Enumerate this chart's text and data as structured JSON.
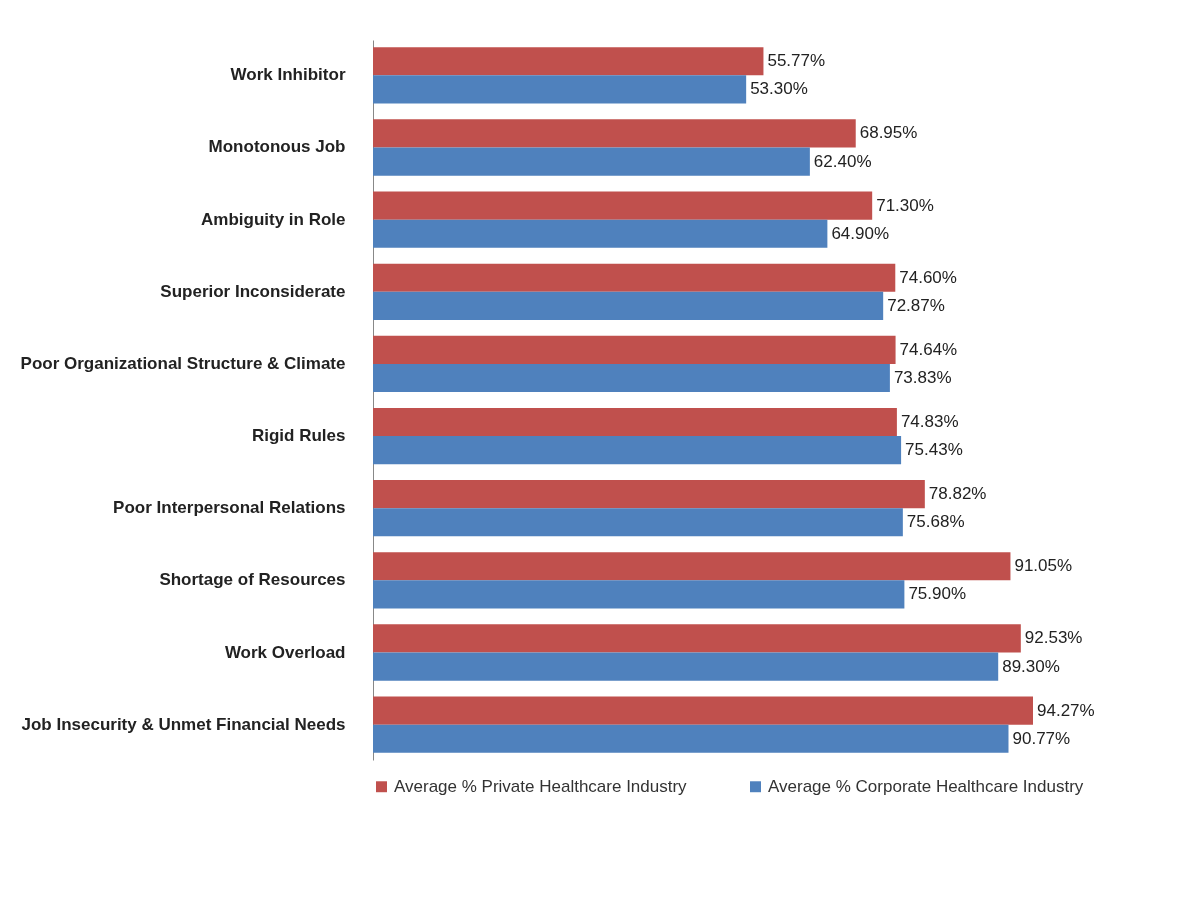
{
  "chart_data": {
    "type": "bar",
    "orientation": "horizontal",
    "categories": [
      "Work Inhibitor",
      "Monotonous Job",
      "Ambiguity in Role",
      "Superior Inconsiderate",
      "Poor Organizational Structure & Climate",
      "Rigid Rules",
      "Poor Interpersonal Relations",
      "Shortage of Resources",
      "Work Overload",
      "Job Insecurity & Unmet Financial Needs"
    ],
    "series": [
      {
        "name": "Average % Private Healthcare Industry",
        "color": "#c0504d",
        "values": [
          55.77,
          68.95,
          71.3,
          74.6,
          74.64,
          74.83,
          78.82,
          91.05,
          92.53,
          94.27
        ],
        "value_labels": [
          "55.77%",
          "68.95%",
          "71.30%",
          "74.60%",
          "74.64%",
          "74.83%",
          "78.82%",
          "91.05%",
          "92.53%",
          "94.27%"
        ]
      },
      {
        "name": "Average % Corporate Healthcare Industry",
        "color": "#4f81bd",
        "values": [
          53.3,
          62.4,
          64.9,
          72.87,
          73.83,
          75.43,
          75.68,
          75.9,
          89.3,
          90.77
        ],
        "value_labels": [
          "53.30%",
          "62.40%",
          "64.90%",
          "72.87%",
          "73.83%",
          "75.43%",
          "75.68%",
          "75.90%",
          "89.30%",
          "90.77%"
        ]
      }
    ],
    "legend": "bottom",
    "tick_labels": "y"
  }
}
